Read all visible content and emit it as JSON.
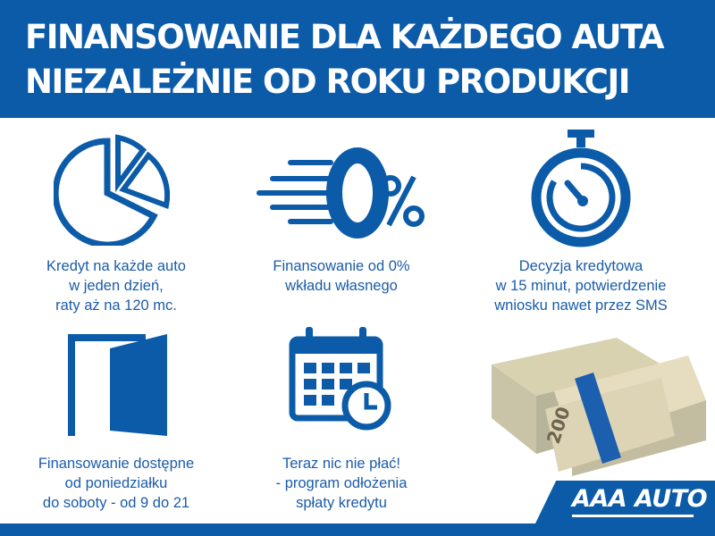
{
  "header": {
    "line1": "FINANSOWANIE DLA KAŻDEGO AUTA",
    "line2": "NIEZALEŻNIE OD ROKU PRODUKCJI"
  },
  "features": [
    {
      "icon": "pie-chart-icon",
      "lines": [
        "Kredyt na każde auto",
        "w jeden dzień,",
        "raty aż na 120 mc."
      ]
    },
    {
      "icon": "zero-percent-icon",
      "lines": [
        "Finansowanie od 0%",
        "wkładu własnego"
      ]
    },
    {
      "icon": "stopwatch-icon",
      "lines": [
        "Decyzja kredytowa",
        "w 15 minut, potwierdzenie",
        "wniosku nawet przez SMS"
      ]
    },
    {
      "icon": "open-door-icon",
      "lines": [
        "Finansowanie dostępne",
        "od poniedziałku",
        "do soboty - od 9 do 21"
      ]
    },
    {
      "icon": "calendar-clock-icon",
      "lines": [
        "Teraz nic nie płać!",
        "- program odłożenia",
        "spłaty kredytu"
      ]
    }
  ],
  "money_image": {
    "icon": "banknotes-stack-icon",
    "note_value": "200"
  },
  "logo": {
    "text": "AAA AUTO"
  },
  "colors": {
    "brand_blue": "#0b5ba8",
    "text_blue": "#1a5ca8",
    "white": "#ffffff"
  }
}
